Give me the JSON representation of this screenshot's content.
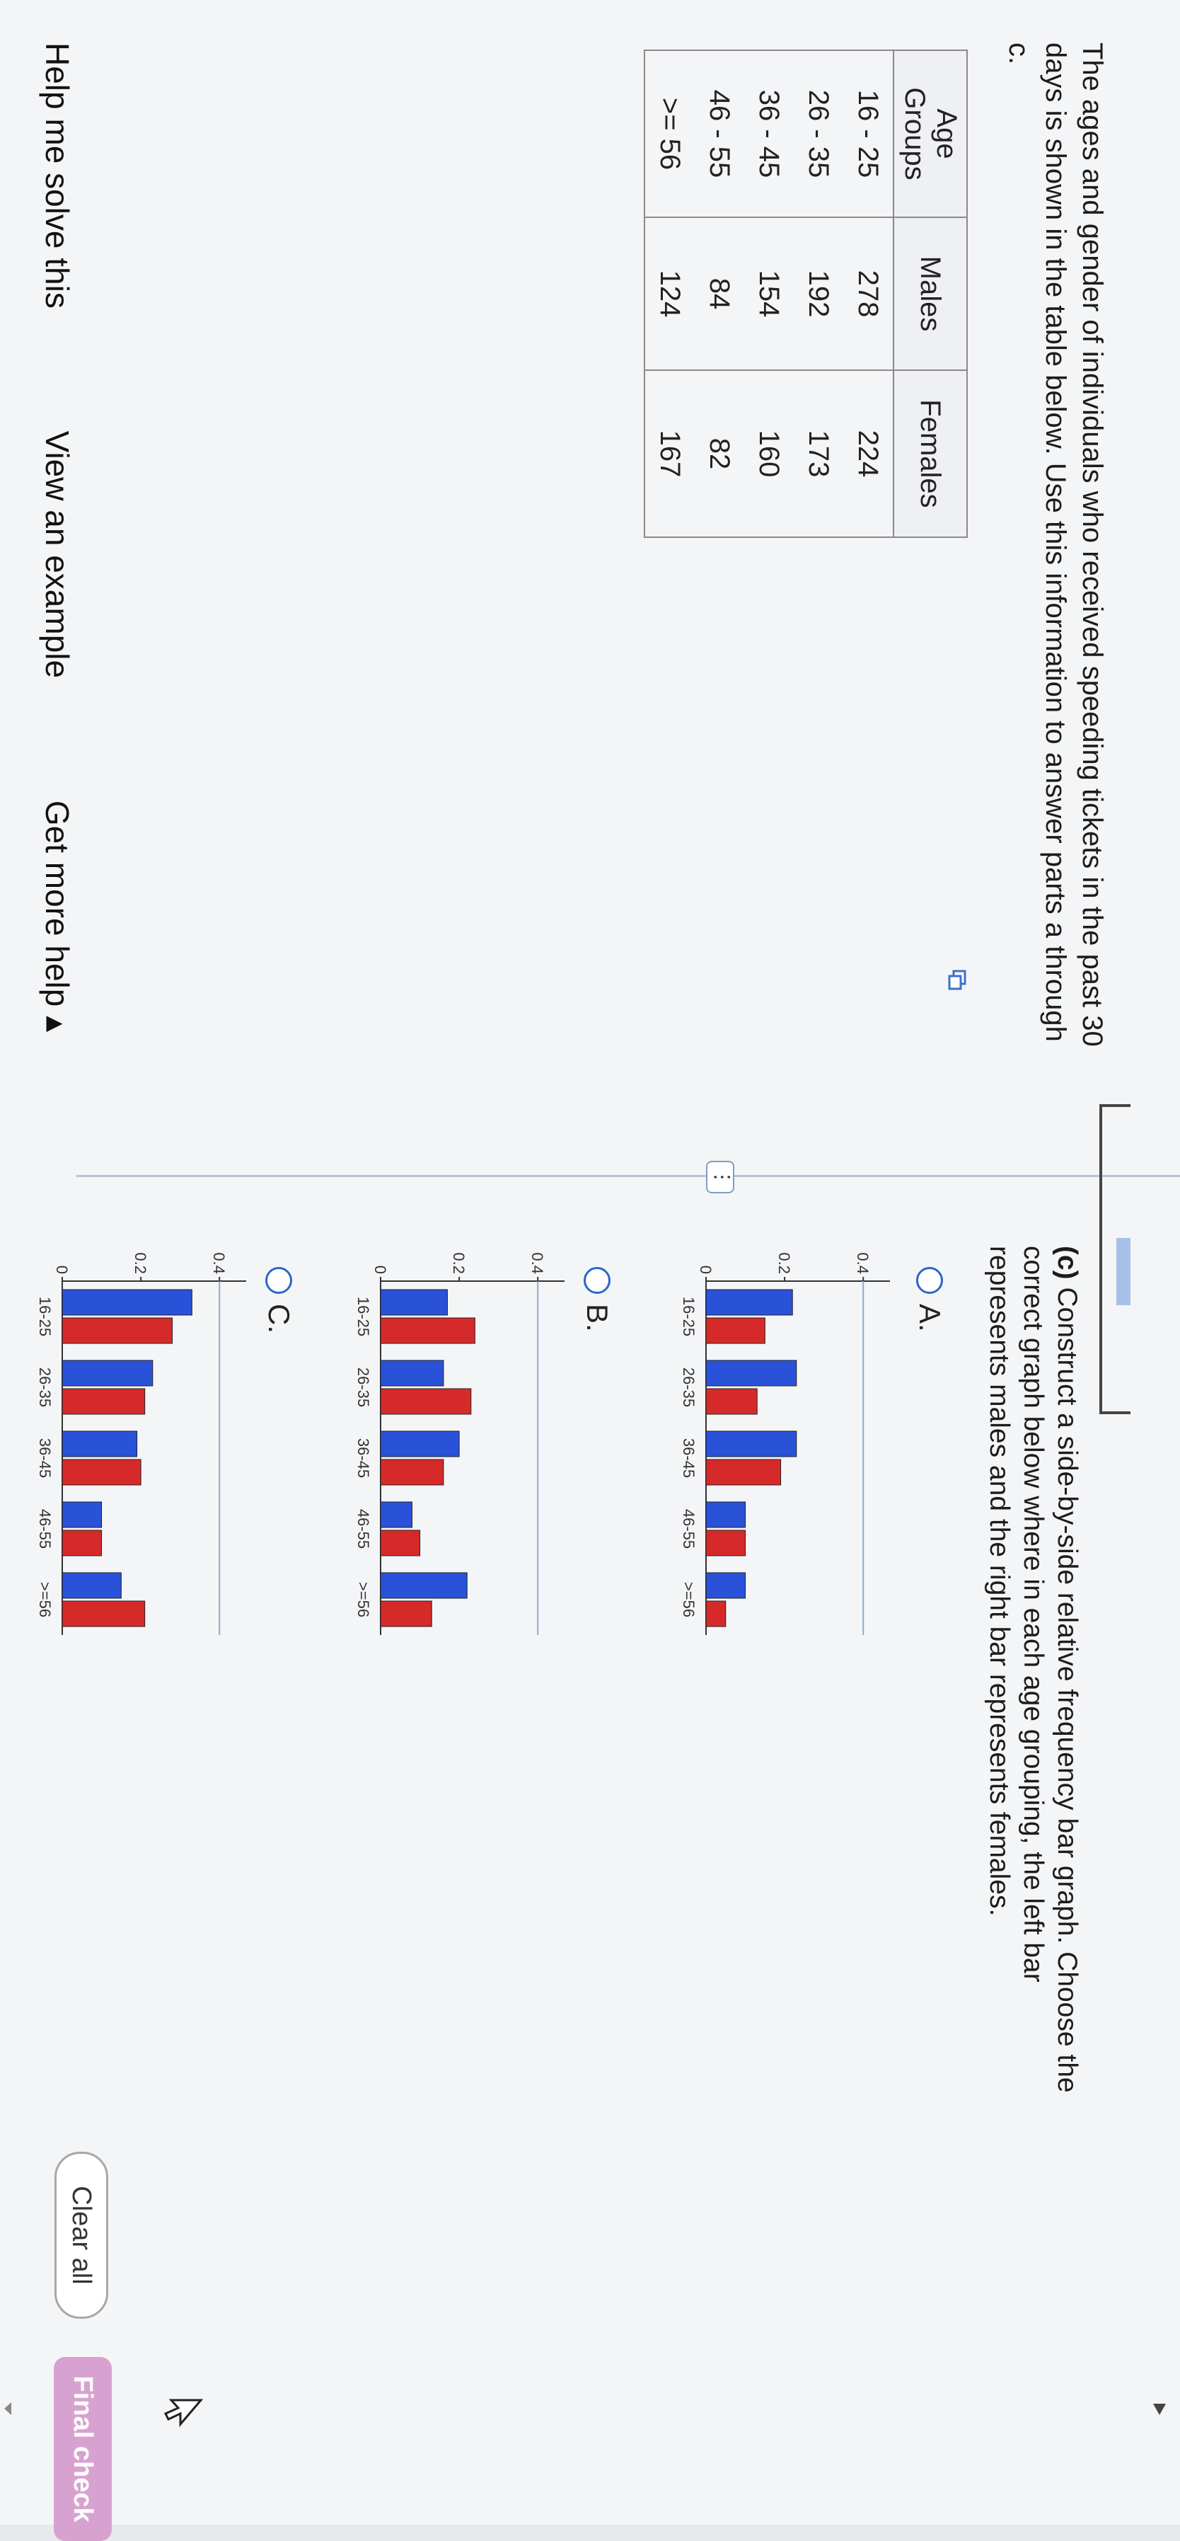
{
  "intro": {
    "line1": "The ages and gender of individuals who received speeding tickets in the past 30",
    "line2": "days is shown in the table below. Use this information to answer parts a through",
    "line3": "c."
  },
  "table": {
    "headers": [
      "Age Groups",
      "Males",
      "Females"
    ],
    "rows": [
      [
        "16 - 25",
        "278",
        "224"
      ],
      [
        "26 - 35",
        "192",
        "173"
      ],
      [
        "36 - 45",
        "154",
        "160"
      ],
      [
        "46 - 55",
        "84",
        "82"
      ],
      [
        ">= 56",
        "124",
        "167"
      ]
    ]
  },
  "more_dots": "⋮",
  "question": {
    "part": "(c)",
    "line1": " Construct a side-by-side relative frequency bar graph. Choose the",
    "line2": "correct graph below where in each age grouping, the left bar",
    "line3": "represents males and the right bar represents females."
  },
  "options": [
    {
      "label": "A."
    },
    {
      "label": "B."
    },
    {
      "label": "C."
    }
  ],
  "colors": {
    "male": "#2a52d8",
    "female": "#d62a2a",
    "accent": "#2a66c7"
  },
  "chart_data": [
    {
      "type": "bar",
      "categories": [
        "16-25",
        "26-35",
        "36-45",
        "46-55",
        ">=56"
      ],
      "series": [
        {
          "values": [
            0.22,
            0.23,
            0.23,
            0.1,
            0.1
          ]
        },
        {
          "values": [
            0.15,
            0.13,
            0.19,
            0.1,
            0.05
          ]
        }
      ],
      "yticks": [
        "0",
        "0.2",
        "0.4"
      ],
      "ylim": [
        0,
        0.45
      ]
    },
    {
      "type": "bar",
      "categories": [
        "16-25",
        "26-35",
        "36-45",
        "46-55",
        ">=56"
      ],
      "series": [
        {
          "values": [
            0.17,
            0.16,
            0.2,
            0.08,
            0.22
          ]
        },
        {
          "values": [
            0.24,
            0.23,
            0.16,
            0.1,
            0.13
          ]
        }
      ],
      "yticks": [
        "0",
        "0.2",
        "0.4"
      ],
      "ylim": [
        0,
        0.45
      ]
    },
    {
      "type": "bar",
      "categories": [
        "16-25",
        "26-35",
        "36-45",
        "46-55",
        ">=56"
      ],
      "series": [
        {
          "values": [
            0.33,
            0.23,
            0.19,
            0.1,
            0.15
          ]
        },
        {
          "values": [
            0.28,
            0.21,
            0.2,
            0.1,
            0.21
          ]
        }
      ],
      "yticks": [
        "0",
        "0.2",
        "0.4"
      ],
      "ylim": [
        0,
        0.45
      ]
    }
  ],
  "footer": {
    "help": "Help me solve this",
    "example": "View an example",
    "more": "Get more help ▴"
  },
  "buttons": {
    "clear": "Clear all",
    "final": "Final check"
  }
}
